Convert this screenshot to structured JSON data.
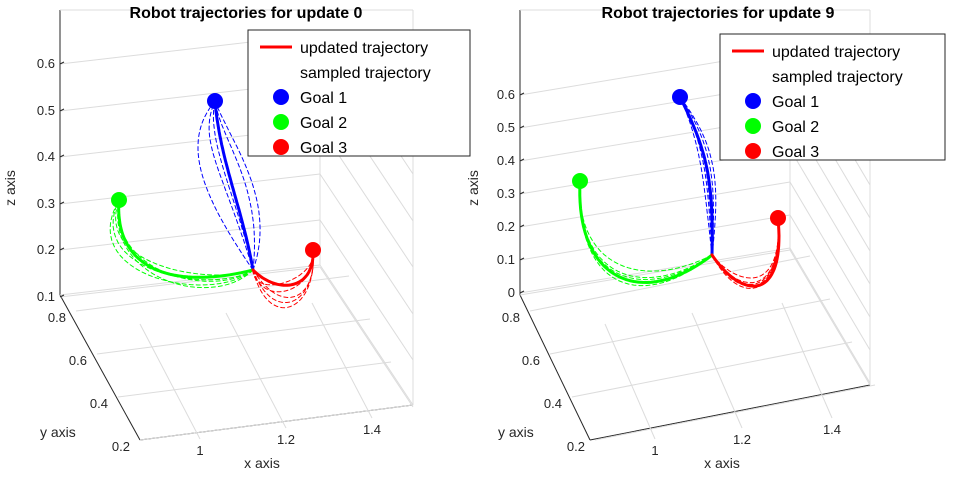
{
  "chart_data": [
    {
      "type": "line-3d",
      "title": "Robot trajectories for update 0",
      "xlabel": "x axis",
      "ylabel": "y axis",
      "zlabel": "z axis",
      "xticks": [
        "1",
        "1.2",
        "1.4"
      ],
      "yticks": [
        "0.2",
        "0.4",
        "0.6",
        "0.8"
      ],
      "zticks": [
        "0.1",
        "0.2",
        "0.3",
        "0.4",
        "0.5",
        "0.6"
      ],
      "grid": true,
      "legend_position": "top-right",
      "legend": [
        {
          "label": "updated trajectory",
          "kind": "line",
          "color": "#ff0000"
        },
        {
          "label": "sampled trajectory",
          "kind": "none",
          "color": "#000000"
        },
        {
          "label": "Goal 1",
          "kind": "marker",
          "color": "#0000ff"
        },
        {
          "label": "Goal 2",
          "kind": "marker",
          "color": "#00ff00"
        },
        {
          "label": "Goal 3",
          "kind": "marker",
          "color": "#ff0000"
        }
      ],
      "goals": [
        {
          "name": "Goal 1",
          "color": "#0000ff"
        },
        {
          "name": "Goal 2",
          "color": "#00ff00"
        },
        {
          "name": "Goal 3",
          "color": "#ff0000"
        }
      ]
    },
    {
      "type": "line-3d",
      "title": "Robot trajectories for update 9",
      "xlabel": "x axis",
      "ylabel": "y axis",
      "zlabel": "z axis",
      "xticks": [
        "1",
        "1.2",
        "1.4"
      ],
      "yticks": [
        "0.2",
        "0.4",
        "0.6",
        "0.8"
      ],
      "zticks": [
        "0",
        "0.1",
        "0.2",
        "0.3",
        "0.4",
        "0.5",
        "0.6"
      ],
      "grid": true,
      "legend_position": "top-right",
      "legend": [
        {
          "label": "updated trajectory",
          "kind": "line",
          "color": "#ff0000"
        },
        {
          "label": "sampled trajectory",
          "kind": "none",
          "color": "#000000"
        },
        {
          "label": "Goal 1",
          "kind": "marker",
          "color": "#0000ff"
        },
        {
          "label": "Goal 2",
          "kind": "marker",
          "color": "#00ff00"
        },
        {
          "label": "Goal 3",
          "kind": "marker",
          "color": "#ff0000"
        }
      ],
      "goals": [
        {
          "name": "Goal 1",
          "color": "#0000ff"
        },
        {
          "name": "Goal 2",
          "color": "#00ff00"
        },
        {
          "name": "Goal 3",
          "color": "#ff0000"
        }
      ]
    }
  ]
}
